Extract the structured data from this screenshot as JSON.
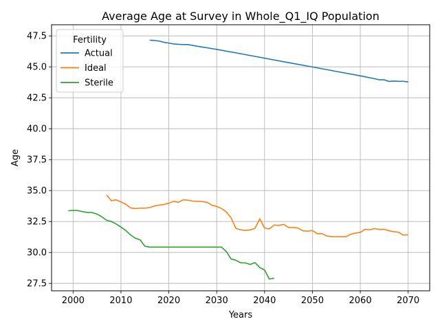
{
  "chart_data": {
    "type": "line",
    "title": "Average Age at Survey in Whole_Q1_IQ Population",
    "xlabel": "Years",
    "ylabel": "Age",
    "xlim": [
      1995.5,
      2074.5
    ],
    "ylim": [
      26.9,
      48.4
    ],
    "xticks": [
      2000,
      2010,
      2020,
      2030,
      2040,
      2050,
      2060,
      2070
    ],
    "yticks": [
      27.5,
      30.0,
      32.5,
      35.0,
      37.5,
      40.0,
      42.5,
      45.0,
      47.5
    ],
    "grid": true,
    "legend": {
      "title": "Fertility",
      "position": "upper-left"
    },
    "series": [
      {
        "name": "Actual",
        "color": "#1f77b4",
        "points": [
          [
            2016,
            47.15
          ],
          [
            2017,
            47.13
          ],
          [
            2018,
            47.08
          ],
          [
            2019,
            46.98
          ],
          [
            2020,
            46.92
          ],
          [
            2021,
            46.85
          ],
          [
            2022,
            46.82
          ],
          [
            2023,
            46.8
          ],
          [
            2024,
            46.8
          ],
          [
            2025,
            46.73
          ],
          [
            2026,
            46.66
          ],
          [
            2027,
            46.6
          ],
          [
            2028,
            46.54
          ],
          [
            2029,
            46.47
          ],
          [
            2030,
            46.41
          ],
          [
            2035,
            46.06
          ],
          [
            2040,
            45.7
          ],
          [
            2045,
            45.34
          ],
          [
            2050,
            44.99
          ],
          [
            2055,
            44.63
          ],
          [
            2060,
            44.27
          ],
          [
            2063,
            44.04
          ],
          [
            2064,
            43.95
          ],
          [
            2065,
            43.95
          ],
          [
            2066,
            43.82
          ],
          [
            2067,
            43.85
          ],
          [
            2068,
            43.83
          ],
          [
            2069,
            43.83
          ],
          [
            2070,
            43.78
          ]
        ]
      },
      {
        "name": "Ideal",
        "color": "#ff7f0e",
        "points": [
          [
            2007,
            34.65
          ],
          [
            2008,
            34.18
          ],
          [
            2009,
            34.25
          ],
          [
            2010,
            34.08
          ],
          [
            2011,
            33.9
          ],
          [
            2012,
            33.6
          ],
          [
            2013,
            33.55
          ],
          [
            2014,
            33.58
          ],
          [
            2015,
            33.58
          ],
          [
            2016,
            33.63
          ],
          [
            2017,
            33.75
          ],
          [
            2018,
            33.83
          ],
          [
            2019,
            33.87
          ],
          [
            2020,
            33.98
          ],
          [
            2021,
            34.13
          ],
          [
            2022,
            34.05
          ],
          [
            2023,
            34.25
          ],
          [
            2024,
            34.22
          ],
          [
            2025,
            34.15
          ],
          [
            2026,
            34.13
          ],
          [
            2027,
            34.12
          ],
          [
            2028,
            34.05
          ],
          [
            2029,
            33.82
          ],
          [
            2030,
            33.72
          ],
          [
            2031,
            33.55
          ],
          [
            2032,
            33.28
          ],
          [
            2033,
            32.8
          ],
          [
            2034,
            31.95
          ],
          [
            2035,
            31.83
          ],
          [
            2036,
            31.78
          ],
          [
            2037,
            31.82
          ],
          [
            2038,
            31.95
          ],
          [
            2039,
            32.72
          ],
          [
            2040,
            31.97
          ],
          [
            2041,
            31.9
          ],
          [
            2042,
            32.22
          ],
          [
            2043,
            32.18
          ],
          [
            2044,
            32.27
          ],
          [
            2045,
            32.02
          ],
          [
            2046,
            32.02
          ],
          [
            2047,
            31.97
          ],
          [
            2048,
            31.75
          ],
          [
            2049,
            31.72
          ],
          [
            2050,
            31.77
          ],
          [
            2051,
            31.52
          ],
          [
            2052,
            31.52
          ],
          [
            2053,
            31.33
          ],
          [
            2054,
            31.28
          ],
          [
            2055,
            31.27
          ],
          [
            2056,
            31.27
          ],
          [
            2057,
            31.27
          ],
          [
            2058,
            31.47
          ],
          [
            2059,
            31.57
          ],
          [
            2060,
            31.62
          ],
          [
            2061,
            31.87
          ],
          [
            2062,
            31.83
          ],
          [
            2063,
            31.93
          ],
          [
            2064,
            31.85
          ],
          [
            2065,
            31.87
          ],
          [
            2066,
            31.75
          ],
          [
            2067,
            31.68
          ],
          [
            2068,
            31.63
          ],
          [
            2069,
            31.4
          ],
          [
            2070,
            31.43
          ]
        ]
      },
      {
        "name": "Sterile",
        "color": "#2ca02c",
        "points": [
          [
            1999,
            33.37
          ],
          [
            2000,
            33.4
          ],
          [
            2001,
            33.38
          ],
          [
            2002,
            33.3
          ],
          [
            2003,
            33.23
          ],
          [
            2004,
            33.22
          ],
          [
            2005,
            33.1
          ],
          [
            2006,
            32.88
          ],
          [
            2007,
            32.6
          ],
          [
            2008,
            32.5
          ],
          [
            2009,
            32.3
          ],
          [
            2010,
            32.05
          ],
          [
            2011,
            31.78
          ],
          [
            2012,
            31.42
          ],
          [
            2013,
            31.15
          ],
          [
            2014,
            31.02
          ],
          [
            2015,
            30.5
          ],
          [
            2016,
            30.43
          ],
          [
            2017,
            30.43
          ],
          [
            2018,
            30.43
          ],
          [
            2019,
            30.43
          ],
          [
            2020,
            30.43
          ],
          [
            2021,
            30.43
          ],
          [
            2022,
            30.43
          ],
          [
            2023,
            30.43
          ],
          [
            2024,
            30.43
          ],
          [
            2025,
            30.43
          ],
          [
            2026,
            30.43
          ],
          [
            2027,
            30.43
          ],
          [
            2028,
            30.43
          ],
          [
            2029,
            30.43
          ],
          [
            2030,
            30.43
          ],
          [
            2031,
            30.43
          ],
          [
            2032,
            30.08
          ],
          [
            2033,
            29.48
          ],
          [
            2034,
            29.37
          ],
          [
            2035,
            29.17
          ],
          [
            2036,
            29.15
          ],
          [
            2037,
            29.03
          ],
          [
            2038,
            29.18
          ],
          [
            2039,
            28.78
          ],
          [
            2040,
            28.58
          ],
          [
            2041,
            27.85
          ],
          [
            2042,
            27.92
          ]
        ]
      }
    ]
  }
}
